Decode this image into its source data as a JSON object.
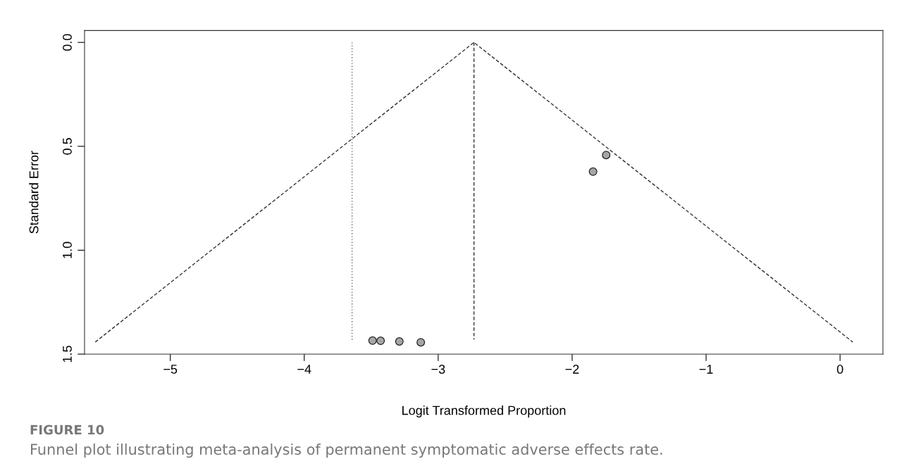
{
  "chart_data": {
    "type": "scatter",
    "xlabel": "Logit Transformed Proportion",
    "ylabel": "Standard Error",
    "xlim": [
      -5.64,
      0.32
    ],
    "xticks": [
      {
        "value": -5,
        "label": "−5"
      },
      {
        "value": -4,
        "label": "−4"
      },
      {
        "value": -3,
        "label": "−3"
      },
      {
        "value": -2,
        "label": "−2"
      },
      {
        "value": -1,
        "label": "−1"
      },
      0
    ],
    "ylim": [
      1.5,
      -0.057
    ],
    "yticks": [
      {
        "value": 0,
        "label": "0.0"
      },
      0.5,
      {
        "value": 1,
        "label": "1.0"
      },
      1.5
    ],
    "grid": false,
    "series": [
      {
        "type": "line",
        "color": "#333333",
        "line_style": "dashed",
        "marker": "none",
        "x": [
          -5.56,
          -2.733,
          0.095
        ],
        "values": [
          1.442,
          0,
          1.442
        ]
      },
      {
        "type": "line",
        "color": "#333333",
        "line_style": "dashed",
        "marker": "none",
        "x": [
          -2.733,
          -2.733
        ],
        "values": [
          0,
          1.43
        ]
      },
      {
        "type": "line",
        "color": "#666666",
        "line_style": "dotted",
        "marker": "none",
        "x": [
          -3.643,
          -3.643
        ],
        "values": [
          0,
          1.44
        ]
      },
      {
        "type": "scatter",
        "color": "#a6a6a6",
        "marker": "circle",
        "x": [
          -3.49,
          -3.43,
          -3.29,
          -3.13,
          -1.844,
          -1.746
        ],
        "values": [
          1.435,
          1.436,
          1.439,
          1.443,
          0.622,
          0.542
        ]
      }
    ],
    "annotations": [
      "FIGURE 10",
      "Funnel plot illustrating meta-analysis of permanent symptomatic adverse effects rate."
    ]
  }
}
